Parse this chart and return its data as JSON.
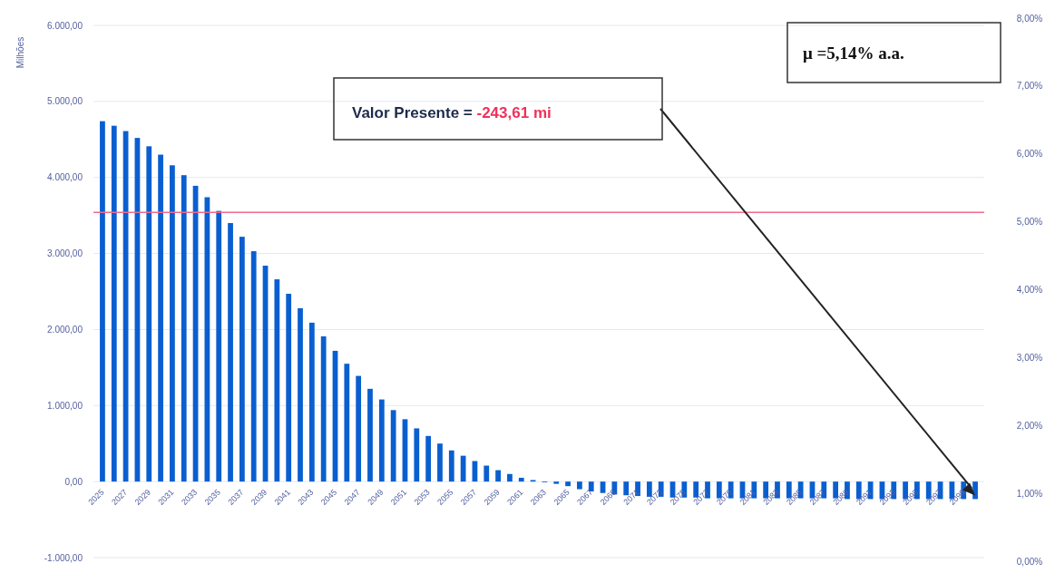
{
  "chart_data": {
    "type": "bar",
    "ylabel": "Milhões",
    "categories": [
      "2025",
      null,
      "2027",
      null,
      "2029",
      null,
      "2031",
      null,
      "2033",
      null,
      "2035",
      null,
      "2037",
      null,
      "2039",
      null,
      "2041",
      null,
      "2043",
      null,
      "2045",
      null,
      "2047",
      null,
      "2049",
      null,
      "2051",
      null,
      "2053",
      null,
      "2055",
      null,
      "2057",
      null,
      "2059",
      null,
      "2061",
      null,
      "2063",
      null,
      "2065",
      null,
      "2067",
      null,
      "2069",
      null,
      "2071",
      null,
      "2073",
      null,
      "2075",
      null,
      "2077",
      null,
      "2079",
      null,
      "2081",
      null,
      "2083",
      null,
      "2085",
      null,
      "2087",
      null,
      "2089",
      null,
      "2091",
      null,
      "2093",
      null,
      "2095",
      null,
      "2097",
      null,
      "2099",
      null
    ],
    "series": [
      {
        "color": "#0a5fd0",
        "values": [
          4740,
          4680,
          4610,
          4520,
          4410,
          4300,
          4160,
          4030,
          3890,
          3740,
          3560,
          3400,
          3220,
          3030,
          2840,
          2660,
          2470,
          2280,
          2090,
          1910,
          1720,
          1550,
          1390,
          1220,
          1080,
          940,
          820,
          700,
          600,
          500,
          410,
          340,
          270,
          210,
          150,
          100,
          50,
          20,
          -10,
          -30,
          -60,
          -100,
          -130,
          -150,
          -170,
          -180,
          -190,
          -200,
          -200,
          -210,
          -210,
          -210,
          -220,
          -220,
          -220,
          -220,
          -220,
          -220,
          -220,
          -220,
          -220,
          -220,
          -220,
          -220,
          -230,
          -230,
          -230,
          -230,
          -230,
          -230,
          -230,
          -230,
          -230,
          -230,
          -230,
          -230
        ]
      }
    ],
    "ylim": [
      -1000,
      6000
    ],
    "yticks": [
      {
        "value": -1000,
        "label": "-1.000,00"
      },
      {
        "value": 0,
        "label": "0,00"
      },
      {
        "value": 1000,
        "label": "1.000,00"
      },
      {
        "value": 2000,
        "label": "2.000,00"
      },
      {
        "value": 3000,
        "label": "3.000,00"
      },
      {
        "value": 4000,
        "label": "4.000,00"
      },
      {
        "value": 5000,
        "label": "5.000,00"
      },
      {
        "value": 6000,
        "label": "6.000,00"
      }
    ],
    "y2lim": [
      0,
      8
    ],
    "y2ticks": [
      {
        "value": 0,
        "label": "0,00%"
      },
      {
        "value": 1,
        "label": "1,00%"
      },
      {
        "value": 2,
        "label": "2,00%"
      },
      {
        "value": 3,
        "label": "3,00%"
      },
      {
        "value": 4,
        "label": "4,00%"
      },
      {
        "value": 5,
        "label": "5,00%"
      },
      {
        "value": 6,
        "label": "6,00%"
      },
      {
        "value": 7,
        "label": "7,00%"
      },
      {
        "value": 8,
        "label": "8,00%"
      }
    ],
    "ref_lines": [
      {
        "axis": "y2",
        "value": 5.14,
        "color": "#f06a8a"
      }
    ],
    "annotations": [
      "μ =5,14% a.a.",
      "Valor Presente = -243,61 mi"
    ],
    "grid": "y"
  }
}
